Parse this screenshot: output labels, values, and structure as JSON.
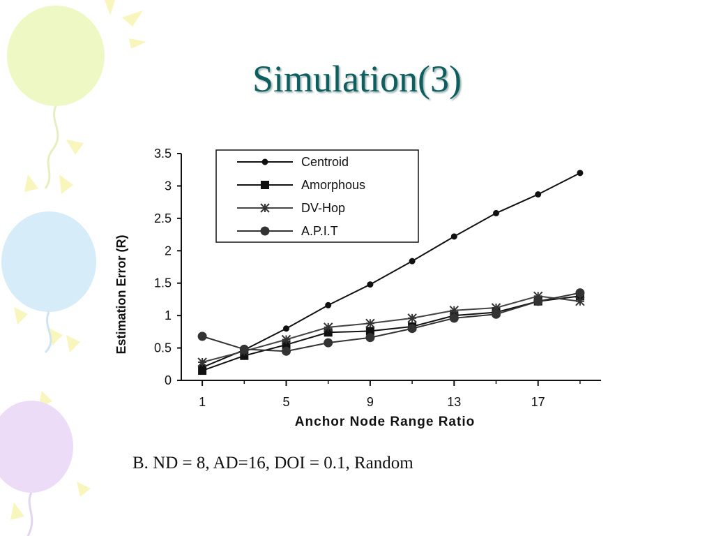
{
  "slide": {
    "title": "Simulation(3)",
    "caption": "B. ND = 8, AD=16, DOI = 0.1, Random"
  },
  "colors": {
    "title": "#0d5e5e",
    "balloon_yellow": "#eef8c4",
    "balloon_blue": "#d6ecf8",
    "balloon_purple": "#ecdcf8",
    "rays": "#f6f3a8",
    "ink": "#111111"
  },
  "chart_data": {
    "type": "line",
    "xlabel": "Anchor Node Range Ratio",
    "ylabel": "Estimation Error  (R)",
    "xlim": [
      0,
      20
    ],
    "ylim": [
      0,
      3.5
    ],
    "xticks": [
      1,
      5,
      9,
      13,
      17
    ],
    "yticks": [
      0,
      0.5,
      1,
      1.5,
      2,
      2.5,
      3,
      3.5
    ],
    "ytick_labels": [
      "0",
      "0.5",
      "1",
      "1.5",
      "2",
      "2.5",
      "3",
      "3.5"
    ],
    "grid": false,
    "legend_position": "top-left",
    "x": [
      1,
      3,
      5,
      7,
      9,
      11,
      13,
      15,
      17,
      19
    ],
    "series": [
      {
        "name": "Centroid",
        "marker": "dot",
        "values": [
          0.2,
          0.47,
          0.8,
          1.16,
          1.48,
          1.84,
          2.22,
          2.58,
          2.87,
          3.2
        ]
      },
      {
        "name": "Amorphous",
        "marker": "square",
        "values": [
          0.15,
          0.38,
          0.55,
          0.74,
          0.76,
          0.83,
          1.0,
          1.05,
          1.22,
          1.3
        ]
      },
      {
        "name": "DV-Hop",
        "marker": "star",
        "values": [
          0.28,
          0.45,
          0.63,
          0.82,
          0.88,
          0.96,
          1.08,
          1.12,
          1.3,
          1.22
        ]
      },
      {
        "name": "A.P.I.T",
        "marker": "circle",
        "values": [
          0.68,
          0.48,
          0.45,
          0.58,
          0.66,
          0.8,
          0.96,
          1.02,
          1.22,
          1.35
        ]
      }
    ]
  }
}
